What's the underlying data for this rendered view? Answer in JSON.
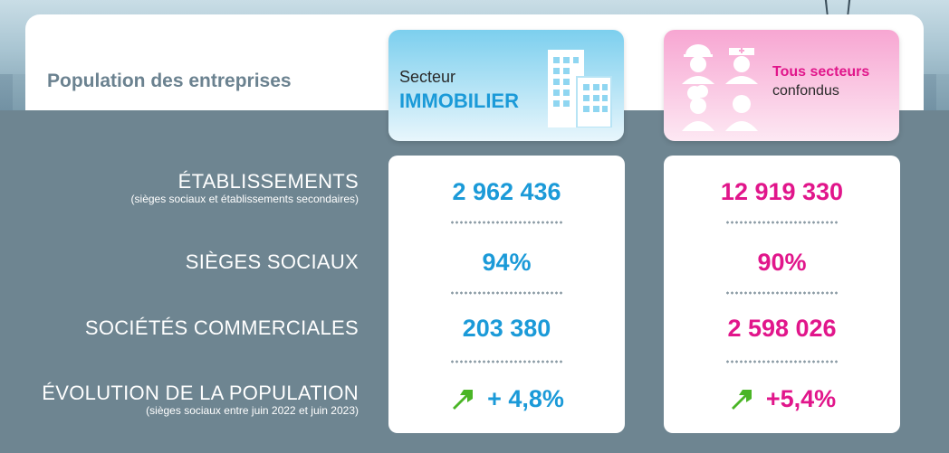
{
  "header": {
    "title": "Population des entreprises"
  },
  "sectors": {
    "immobilier": {
      "line1": "Secteur",
      "line2": "IMMOBILIER",
      "icon": "building-icon",
      "accent": "#1b9ad8"
    },
    "tous": {
      "line1": "Tous secteurs",
      "line2": "confondus",
      "icon": "people-icon",
      "accent": "#e1168b"
    }
  },
  "rows": [
    {
      "label": "ÉTABLISSEMENTS",
      "sublabel": "(sièges sociaux et établissements secondaires)",
      "immobilier": "2 962 436",
      "tous": "12 919 330"
    },
    {
      "label": "SIÈGES SOCIAUX",
      "sublabel": "",
      "immobilier": "94%",
      "tous": "90%"
    },
    {
      "label": "SOCIÉTÉS COMMERCIALES",
      "sublabel": "",
      "immobilier": "203 380",
      "tous": "2 598 026"
    },
    {
      "label": "ÉVOLUTION DE LA POPULATION",
      "sublabel": "(sièges sociaux entre juin 2022 et juin 2023)",
      "immobilier": "+ 4,8%",
      "tous": "+5,4%",
      "icon": "arrow-up-right-icon",
      "icon_color": "#4ab526"
    }
  ]
}
